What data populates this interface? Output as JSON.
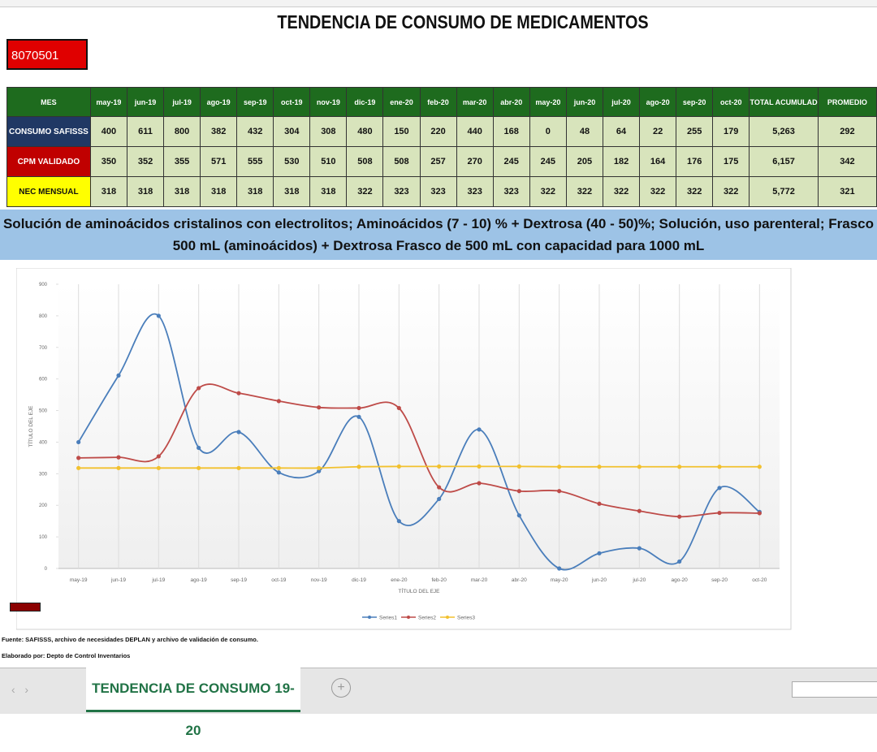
{
  "title": "TENDENCIA DE CONSUMO DE MEDICAMENTOS",
  "code": "8070501",
  "table": {
    "header": [
      "MES",
      "may-19",
      "jun-19",
      "jul-19",
      "ago-19",
      "sep-19",
      "oct-19",
      "nov-19",
      "dic-19",
      "ene-20",
      "feb-20",
      "mar-20",
      "abr-20",
      "may-20",
      "jun-20",
      "jul-20",
      "ago-20",
      "sep-20",
      "oct-20",
      "TOTAL ACUMULAD",
      "PROMEDIO"
    ],
    "rows": [
      [
        "CONSUMO SAFISSS",
        "400",
        "611",
        "800",
        "382",
        "432",
        "304",
        "308",
        "480",
        "150",
        "220",
        "440",
        "168",
        "0",
        "48",
        "64",
        "22",
        "255",
        "179",
        "5,263",
        "292"
      ],
      [
        "CPM VALIDADO",
        "350",
        "352",
        "355",
        "571",
        "555",
        "530",
        "510",
        "508",
        "508",
        "257",
        "270",
        "245",
        "245",
        "205",
        "182",
        "164",
        "176",
        "175",
        "6,157",
        "342"
      ],
      [
        "NEC MENSUAL",
        "318",
        "318",
        "318",
        "318",
        "318",
        "318",
        "318",
        "322",
        "323",
        "323",
        "323",
        "323",
        "322",
        "322",
        "322",
        "322",
        "322",
        "322",
        "5,772",
        "321"
      ]
    ]
  },
  "description": "Solución de aminoácidos cristalinos con electrolitos; Aminoácidos (7 - 10) % + Dextrosa (40 - 50)%; Solución, uso parenteral; Frasco 500 mL (aminoácidos) + Dextrosa Frasco de 500 mL con capacidad para 1000 mL",
  "chart_data": {
    "type": "line",
    "categories": [
      "may-19",
      "jun-19",
      "jul-19",
      "ago-19",
      "sep-19",
      "oct-19",
      "nov-19",
      "dic-19",
      "ene-20",
      "feb-20",
      "mar-20",
      "abr-20",
      "may-20",
      "jun-20",
      "jul-20",
      "ago-20",
      "sep-20",
      "oct-20"
    ],
    "series": [
      {
        "name": "Series1",
        "color": "#4a7ebb",
        "values": [
          400,
          611,
          800,
          382,
          432,
          304,
          308,
          480,
          150,
          220,
          440,
          168,
          0,
          48,
          64,
          22,
          255,
          179
        ]
      },
      {
        "name": "Series2",
        "color": "#be4b48",
        "values": [
          350,
          352,
          355,
          571,
          555,
          530,
          510,
          508,
          508,
          257,
          270,
          245,
          245,
          205,
          182,
          164,
          176,
          175
        ]
      },
      {
        "name": "Series3",
        "color": "#f2c12e",
        "values": [
          318,
          318,
          318,
          318,
          318,
          318,
          318,
          322,
          323,
          323,
          323,
          323,
          322,
          322,
          322,
          322,
          322,
          322
        ]
      }
    ],
    "ylim": [
      0,
      900
    ],
    "yticks": [
      0,
      100,
      200,
      300,
      400,
      500,
      600,
      700,
      800,
      900
    ],
    "x_label": "TÍTULO DEL EJE",
    "y_label": "TÍTULO DEL EJE",
    "legend": "bottom"
  },
  "notes": [
    "Fuente: SAFISSS, archivo de necesidades DEPLAN y archivo de validación de consumo.",
    "Elaborado por: Depto de Control Inventarios"
  ],
  "sheet_tab": "TENDENCIA DE CONSUMO 19-20"
}
